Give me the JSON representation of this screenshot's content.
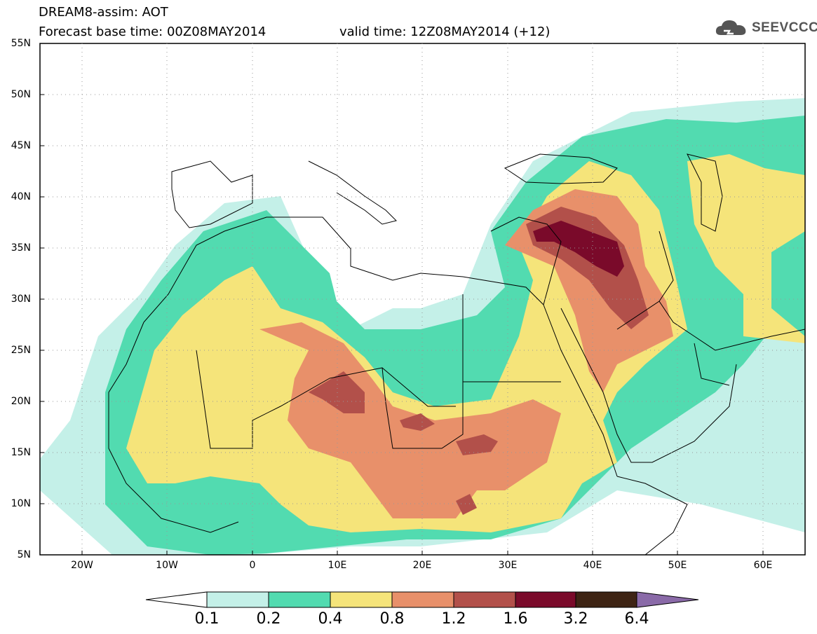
{
  "header": {
    "title_line1": "DREAM8-assim: AOT",
    "title_line2": "Forecast base time: 00Z08MAY2014",
    "valid_time": "valid time: 12Z08MAY2014 (+12)",
    "logo_text": "SEEVCCC"
  },
  "map": {
    "lat_labels": [
      "55N",
      "50N",
      "45N",
      "40N",
      "35N",
      "30N",
      "25N",
      "20N",
      "15N",
      "10N",
      "5N"
    ],
    "lon_labels": [
      "20W",
      "10W",
      "0",
      "10E",
      "20E",
      "30E",
      "40E",
      "50E",
      "60E"
    ],
    "lon_range": [
      -25,
      65
    ],
    "lat_range": [
      5,
      55
    ],
    "field": "AOT",
    "colors": {
      "frame": "#000000",
      "coast": "#000000"
    }
  },
  "colorbar": {
    "labels": [
      "0.1",
      "0.2",
      "0.4",
      "0.8",
      "1.2",
      "1.6",
      "3.2",
      "6.4"
    ],
    "colors": [
      "#ffffff",
      "#c4f0e8",
      "#52dbb0",
      "#f5e47a",
      "#e8906a",
      "#b2504a",
      "#7a0a2a",
      "#3e2414",
      "#8a6aa8"
    ]
  }
}
